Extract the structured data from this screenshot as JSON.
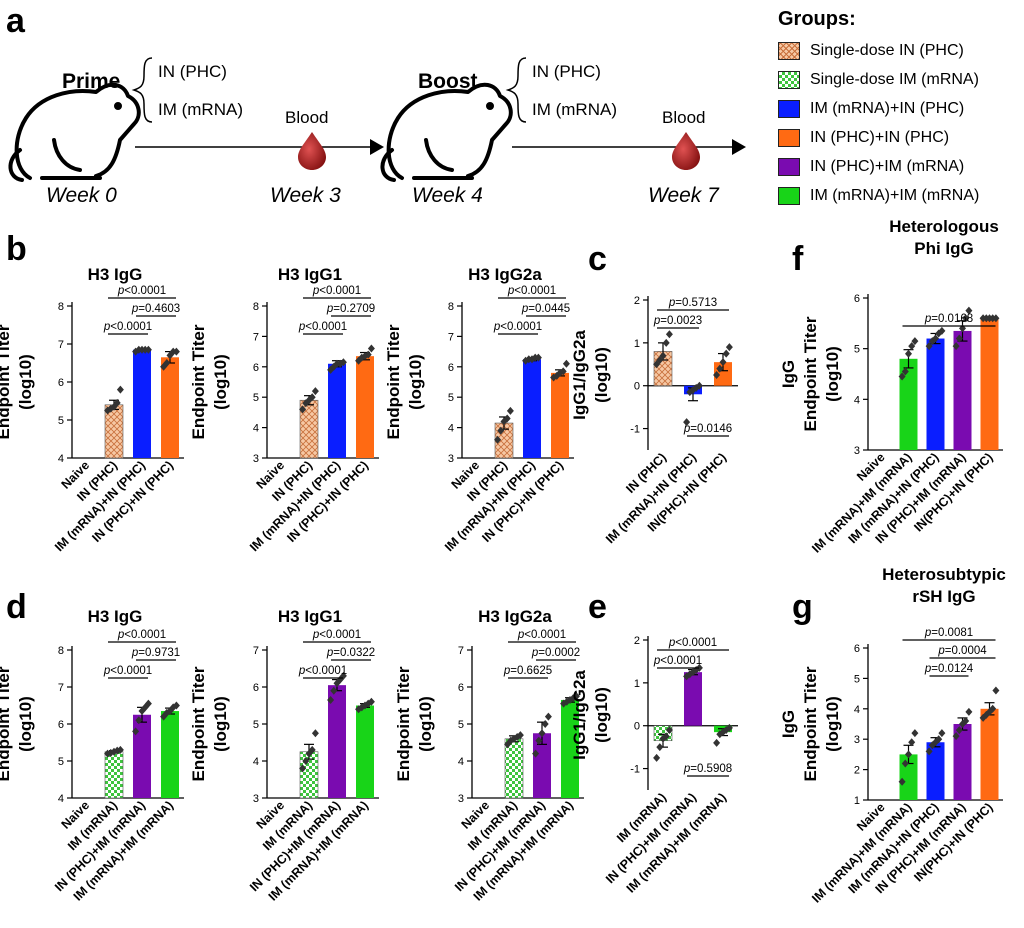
{
  "panel_a": {
    "letter": "a",
    "prime": "Prime",
    "boost": "Boost",
    "routes": [
      "IN (PHC)",
      "IM (mRNA)"
    ],
    "blood": "Blood",
    "weeks": [
      "Week 0",
      "Week 3",
      "Week 4",
      "Week 7"
    ],
    "groups_title": "Groups:",
    "legend": [
      {
        "label": "Single-dose IN (PHC)",
        "color": "#f4b183",
        "pattern": "hatch"
      },
      {
        "label": "Single-dose IM (mRNA)",
        "color": "#5dd45d",
        "pattern": "checker"
      },
      {
        "label": "IM (mRNA)+IN (PHC)",
        "color": "#0a1eff",
        "pattern": "solid"
      },
      {
        "label": "IN (PHC)+IN (PHC)",
        "color": "#ff6a13",
        "pattern": "solid"
      },
      {
        "label": "IN (PHC)+IM (mRNA)",
        "color": "#7a0bb0",
        "pattern": "solid"
      },
      {
        "label": "IM (mRNA)+IM (mRNA)",
        "color": "#18d418",
        "pattern": "solid"
      }
    ]
  },
  "panel_letters": {
    "b": "b",
    "c": "c",
    "d": "d",
    "e": "e",
    "f": "f",
    "g": "g"
  },
  "chart_data": [
    {
      "id": "b1",
      "type": "bar",
      "title": "H3 IgG",
      "ylabel": "Endpoint Titer\n(log10)",
      "ylim": [
        4,
        8
      ],
      "yticks": [
        4,
        5,
        6,
        7,
        8
      ],
      "categories": [
        "Naive",
        "IN (PHC)",
        "IM (mRNA)+IN (PHC)",
        "IN (PHC)+IN (PHC)"
      ],
      "values": [
        null,
        5.4,
        6.85,
        6.65
      ],
      "errors": [
        0,
        0.12,
        0.03,
        0.15
      ],
      "points": [
        [],
        [
          5.25,
          5.3,
          5.35,
          5.45,
          5.8
        ],
        [
          6.8,
          6.85,
          6.85,
          6.85,
          6.85
        ],
        [
          6.4,
          6.5,
          6.7,
          6.8,
          6.8
        ]
      ],
      "fills": [
        "none",
        "hatch",
        "#0a1eff",
        "#ff6a13"
      ],
      "comparisons": [
        {
          "from": 1,
          "to": 2,
          "label_p": "p",
          "label_rest": "<0.0001"
        },
        {
          "from": 2,
          "to": 3,
          "label_p": "p",
          "label_rest": "=0.4603"
        },
        {
          "from": 1,
          "to": 3,
          "label_p": "p",
          "label_rest": "<0.0001"
        }
      ]
    },
    {
      "id": "b2",
      "type": "bar",
      "title": "H3 IgG1",
      "ylabel": "Endpoint Titer\n(log10)",
      "ylim": [
        3,
        8
      ],
      "yticks": [
        3,
        4,
        5,
        6,
        7,
        8
      ],
      "categories": [
        "Naive",
        "IN (PHC)",
        "IM (mRNA)+IN (PHC)",
        "IN (PHC)+IN (PHC)"
      ],
      "values": [
        null,
        4.9,
        6.1,
        6.35
      ],
      "errors": [
        0,
        0.15,
        0.1,
        0.12
      ],
      "points": [
        [],
        [
          4.6,
          4.8,
          4.9,
          5.0,
          5.2
        ],
        [
          5.9,
          6.0,
          6.1,
          6.1,
          6.15
        ],
        [
          6.2,
          6.3,
          6.35,
          6.4,
          6.6
        ]
      ],
      "fills": [
        "none",
        "hatch",
        "#0a1eff",
        "#ff6a13"
      ],
      "comparisons": [
        {
          "from": 1,
          "to": 2,
          "label_p": "p",
          "label_rest": "<0.0001"
        },
        {
          "from": 2,
          "to": 3,
          "label_p": "p",
          "label_rest": "=0.2709"
        },
        {
          "from": 1,
          "to": 3,
          "label_p": "p",
          "label_rest": "<0.0001"
        }
      ]
    },
    {
      "id": "b3",
      "type": "bar",
      "title": "H3 IgG2a",
      "ylabel": "Endpoint Titer\n(log10)",
      "ylim": [
        3,
        8
      ],
      "yticks": [
        3,
        4,
        5,
        6,
        7,
        8
      ],
      "categories": [
        "Naive",
        "IN (PHC)",
        "IM (mRNA)+IN (PHC)",
        "IN (PHC)+IN (PHC)"
      ],
      "values": [
        null,
        4.15,
        6.25,
        5.8
      ],
      "errors": [
        0,
        0.2,
        0.05,
        0.1
      ],
      "points": [
        [],
        [
          3.6,
          3.9,
          4.2,
          4.3,
          4.55
        ],
        [
          6.2,
          6.25,
          6.25,
          6.3,
          6.3
        ],
        [
          5.65,
          5.7,
          5.8,
          5.85,
          6.1
        ]
      ],
      "fills": [
        "none",
        "hatch",
        "#0a1eff",
        "#ff6a13"
      ],
      "comparisons": [
        {
          "from": 1,
          "to": 2,
          "label_p": "p",
          "label_rest": "<0.0001"
        },
        {
          "from": 2,
          "to": 3,
          "label_p": "p",
          "label_rest": "=0.0445"
        },
        {
          "from": 1,
          "to": 3,
          "label_p": "p",
          "label_rest": "<0.0001"
        }
      ]
    },
    {
      "id": "c",
      "type": "bar",
      "title": "",
      "ylabel": "IgG1/IgG2a\n(log10)",
      "ylim": [
        -1.5,
        2
      ],
      "yticks": [
        -1,
        0,
        1,
        2
      ],
      "zero_line": true,
      "categories": [
        "IN (PHC)",
        "IM (mRNA)+IN (PHC)",
        "IN(PHC)+IN (PHC)"
      ],
      "values": [
        0.8,
        -0.2,
        0.55
      ],
      "errors": [
        0.2,
        0.15,
        0.2
      ],
      "points": [
        [
          0.5,
          0.6,
          0.7,
          1.0,
          1.2
        ],
        [
          -0.85,
          -0.15,
          -0.1,
          -0.05,
          0.0
        ],
        [
          0.25,
          0.4,
          0.55,
          0.75,
          0.9
        ]
      ],
      "fills": [
        "hatch",
        "#0a1eff",
        "#ff6a13"
      ],
      "comparisons": [
        {
          "from": 0,
          "to": 1,
          "label_p": "p",
          "label_rest": "=0.0023"
        },
        {
          "from": 0,
          "to": 2,
          "label_p": "p",
          "label_rest": "=0.5713"
        },
        {
          "from": 1,
          "to": 2,
          "label_p": "p",
          "label_rest": "=0.0146",
          "below": true
        }
      ]
    },
    {
      "id": "f",
      "type": "bar",
      "title": "Heterologous\nPhi IgG",
      "ylabel": "IgG\nEndpoint Titer\n(log10)",
      "ylim": [
        3,
        6
      ],
      "yticks": [
        3,
        4,
        5,
        6
      ],
      "categories": [
        "Naive",
        "IM (mRNA)+IM (mRNA)",
        "IM (mRNA)+IN (PHC)",
        "IN (PHC)+IM (mRNA)",
        "IN(PHC)+IN (PHC)"
      ],
      "values": [
        null,
        4.8,
        5.2,
        5.35,
        5.6
      ],
      "errors": [
        0,
        0.18,
        0.1,
        0.2,
        0.02
      ],
      "points": [
        [],
        [
          4.45,
          4.55,
          4.9,
          5.05,
          5.15
        ],
        [
          5.05,
          5.15,
          5.2,
          5.3,
          5.35
        ],
        [
          5.05,
          5.2,
          5.4,
          5.6,
          5.75
        ],
        [
          5.6,
          5.6,
          5.6,
          5.6,
          5.6
        ]
      ],
      "fills": [
        "none",
        "#18d418",
        "#0a1eff",
        "#7a0bb0",
        "#ff6a13"
      ],
      "comparisons": [
        {
          "from": 1,
          "to": 4,
          "label_p": "p",
          "label_rest": "=0.0168"
        }
      ]
    },
    {
      "id": "d1",
      "type": "bar",
      "title": "H3 IgG",
      "ylabel": "Endpoint Titer\n(log10)",
      "ylim": [
        4,
        8
      ],
      "yticks": [
        4,
        5,
        6,
        7,
        8
      ],
      "categories": [
        "Naive",
        "IM (mRNA)",
        "IN (PHC)+IM (mRNA)",
        "IM (mRNA)+IM (mRNA)"
      ],
      "values": [
        null,
        5.25,
        6.25,
        6.35
      ],
      "errors": [
        0,
        0.03,
        0.2,
        0.08
      ],
      "points": [
        [],
        [
          5.2,
          5.22,
          5.25,
          5.28,
          5.3
        ],
        [
          5.8,
          6.1,
          6.35,
          6.45,
          6.55
        ],
        [
          6.2,
          6.3,
          6.35,
          6.45,
          6.5
        ]
      ],
      "fills": [
        "none",
        "checker",
        "#7a0bb0",
        "#18d418"
      ],
      "comparisons": [
        {
          "from": 1,
          "to": 2,
          "label_p": "p",
          "label_rest": "<0.0001"
        },
        {
          "from": 2,
          "to": 3,
          "label_p": "p",
          "label_rest": "=0.9731"
        },
        {
          "from": 1,
          "to": 3,
          "label_p": "p",
          "label_rest": "<0.0001"
        }
      ]
    },
    {
      "id": "d2",
      "type": "bar",
      "title": "H3 IgG1",
      "ylabel": "Endpoint Titer\n(log10)",
      "ylim": [
        3,
        7
      ],
      "yticks": [
        3,
        4,
        5,
        6,
        7
      ],
      "categories": [
        "Naive",
        "IM (mRNA)",
        "IN (PHC)+IM (mRNA)",
        "IM (mRNA)+IM (mRNA)"
      ],
      "values": [
        null,
        4.25,
        6.05,
        5.5
      ],
      "errors": [
        0,
        0.2,
        0.15,
        0.05
      ],
      "points": [
        [],
        [
          3.8,
          4.0,
          4.2,
          4.3,
          4.75
        ],
        [
          5.65,
          5.9,
          6.1,
          6.2,
          6.3
        ],
        [
          5.4,
          5.45,
          5.5,
          5.55,
          5.6
        ]
      ],
      "fills": [
        "none",
        "checker",
        "#7a0bb0",
        "#18d418"
      ],
      "comparisons": [
        {
          "from": 1,
          "to": 2,
          "label_p": "p",
          "label_rest": "<0.0001"
        },
        {
          "from": 2,
          "to": 3,
          "label_p": "p",
          "label_rest": "=0.0322"
        },
        {
          "from": 1,
          "to": 3,
          "label_p": "p",
          "label_rest": "<0.0001"
        }
      ]
    },
    {
      "id": "d3",
      "type": "bar",
      "title": "H3 IgG2a",
      "ylabel": "Endpoint Titer\n(log10)",
      "ylim": [
        3,
        7
      ],
      "yticks": [
        3,
        4,
        5,
        6,
        7
      ],
      "categories": [
        "Naive",
        "IM (mRNA)",
        "IN (PHC)+IM (mRNA)",
        "IM (mRNA)+IM (mRNA)"
      ],
      "values": [
        null,
        4.6,
        4.75,
        5.65
      ],
      "errors": [
        0,
        0.08,
        0.3,
        0.06
      ],
      "points": [
        [],
        [
          4.45,
          4.55,
          4.6,
          4.65,
          4.7
        ],
        [
          4.2,
          4.55,
          4.75,
          5.0,
          5.2
        ],
        [
          5.55,
          5.6,
          5.65,
          5.7,
          5.75
        ]
      ],
      "fills": [
        "none",
        "checker",
        "#7a0bb0",
        "#18d418"
      ],
      "comparisons": [
        {
          "from": 1,
          "to": 2,
          "label_p": "p",
          "label_rest": "=0.6625"
        },
        {
          "from": 2,
          "to": 3,
          "label_p": "p",
          "label_rest": "=0.0002"
        },
        {
          "from": 1,
          "to": 3,
          "label_p": "p",
          "label_rest": "<0.0001"
        }
      ]
    },
    {
      "id": "e",
      "type": "bar",
      "title": "",
      "ylabel": "IgG1/IgG2a\n(log10)",
      "ylim": [
        -1.5,
        2
      ],
      "yticks": [
        -1,
        0,
        1,
        2
      ],
      "zero_line": true,
      "categories": [
        "IM (mRNA)",
        "IN (PHC)+IM (mRNA)",
        "IM (mRNA)+IM (mRNA)"
      ],
      "values": [
        -0.35,
        1.25,
        -0.15
      ],
      "errors": [
        0.15,
        0.06,
        0.08
      ],
      "points": [
        [
          -0.75,
          -0.5,
          -0.3,
          -0.25,
          -0.1
        ],
        [
          1.15,
          1.2,
          1.25,
          1.3,
          1.35
        ],
        [
          -0.4,
          -0.2,
          -0.15,
          -0.1,
          -0.05
        ]
      ],
      "fills": [
        "checker",
        "#7a0bb0",
        "#18d418"
      ],
      "comparisons": [
        {
          "from": 0,
          "to": 1,
          "label_p": "p",
          "label_rest": "<0.0001"
        },
        {
          "from": 0,
          "to": 2,
          "label_p": "p",
          "label_rest": "<0.0001"
        },
        {
          "from": 1,
          "to": 2,
          "label_p": "p",
          "label_rest": "=0.5908",
          "below": true
        }
      ]
    },
    {
      "id": "g",
      "type": "bar",
      "title": "Heterosubtypic\nrSH IgG",
      "ylabel": "IgG\nEndpoint Titer\n(log10)",
      "ylim": [
        1,
        6
      ],
      "yticks": [
        1,
        2,
        3,
        4,
        5,
        6
      ],
      "categories": [
        "Naive",
        "IM (mRNA)+IM (mRNA)",
        "IM (mRNA)+IN (PHC)",
        "IN (PHC)+IM (mRNA)",
        "IN(PHC)+IN (PHC)"
      ],
      "values": [
        null,
        2.5,
        2.9,
        3.5,
        4.0
      ],
      "errors": [
        0,
        0.3,
        0.15,
        0.2,
        0.2
      ],
      "points": [
        [],
        [
          1.6,
          2.2,
          2.5,
          2.9,
          3.2
        ],
        [
          2.6,
          2.8,
          2.9,
          3.0,
          3.2
        ],
        [
          3.1,
          3.3,
          3.5,
          3.6,
          3.9
        ],
        [
          3.7,
          3.8,
          3.9,
          4.0,
          4.6
        ]
      ],
      "fills": [
        "none",
        "#18d418",
        "#0a1eff",
        "#7a0bb0",
        "#ff6a13"
      ],
      "comparisons": [
        {
          "from": 2,
          "to": 3,
          "label_p": "p",
          "label_rest": "=0.0124"
        },
        {
          "from": 2,
          "to": 4,
          "label_p": "p",
          "label_rest": "=0.0004"
        },
        {
          "from": 1,
          "to": 4,
          "label_p": "p",
          "label_rest": "=0.0081"
        }
      ]
    }
  ]
}
